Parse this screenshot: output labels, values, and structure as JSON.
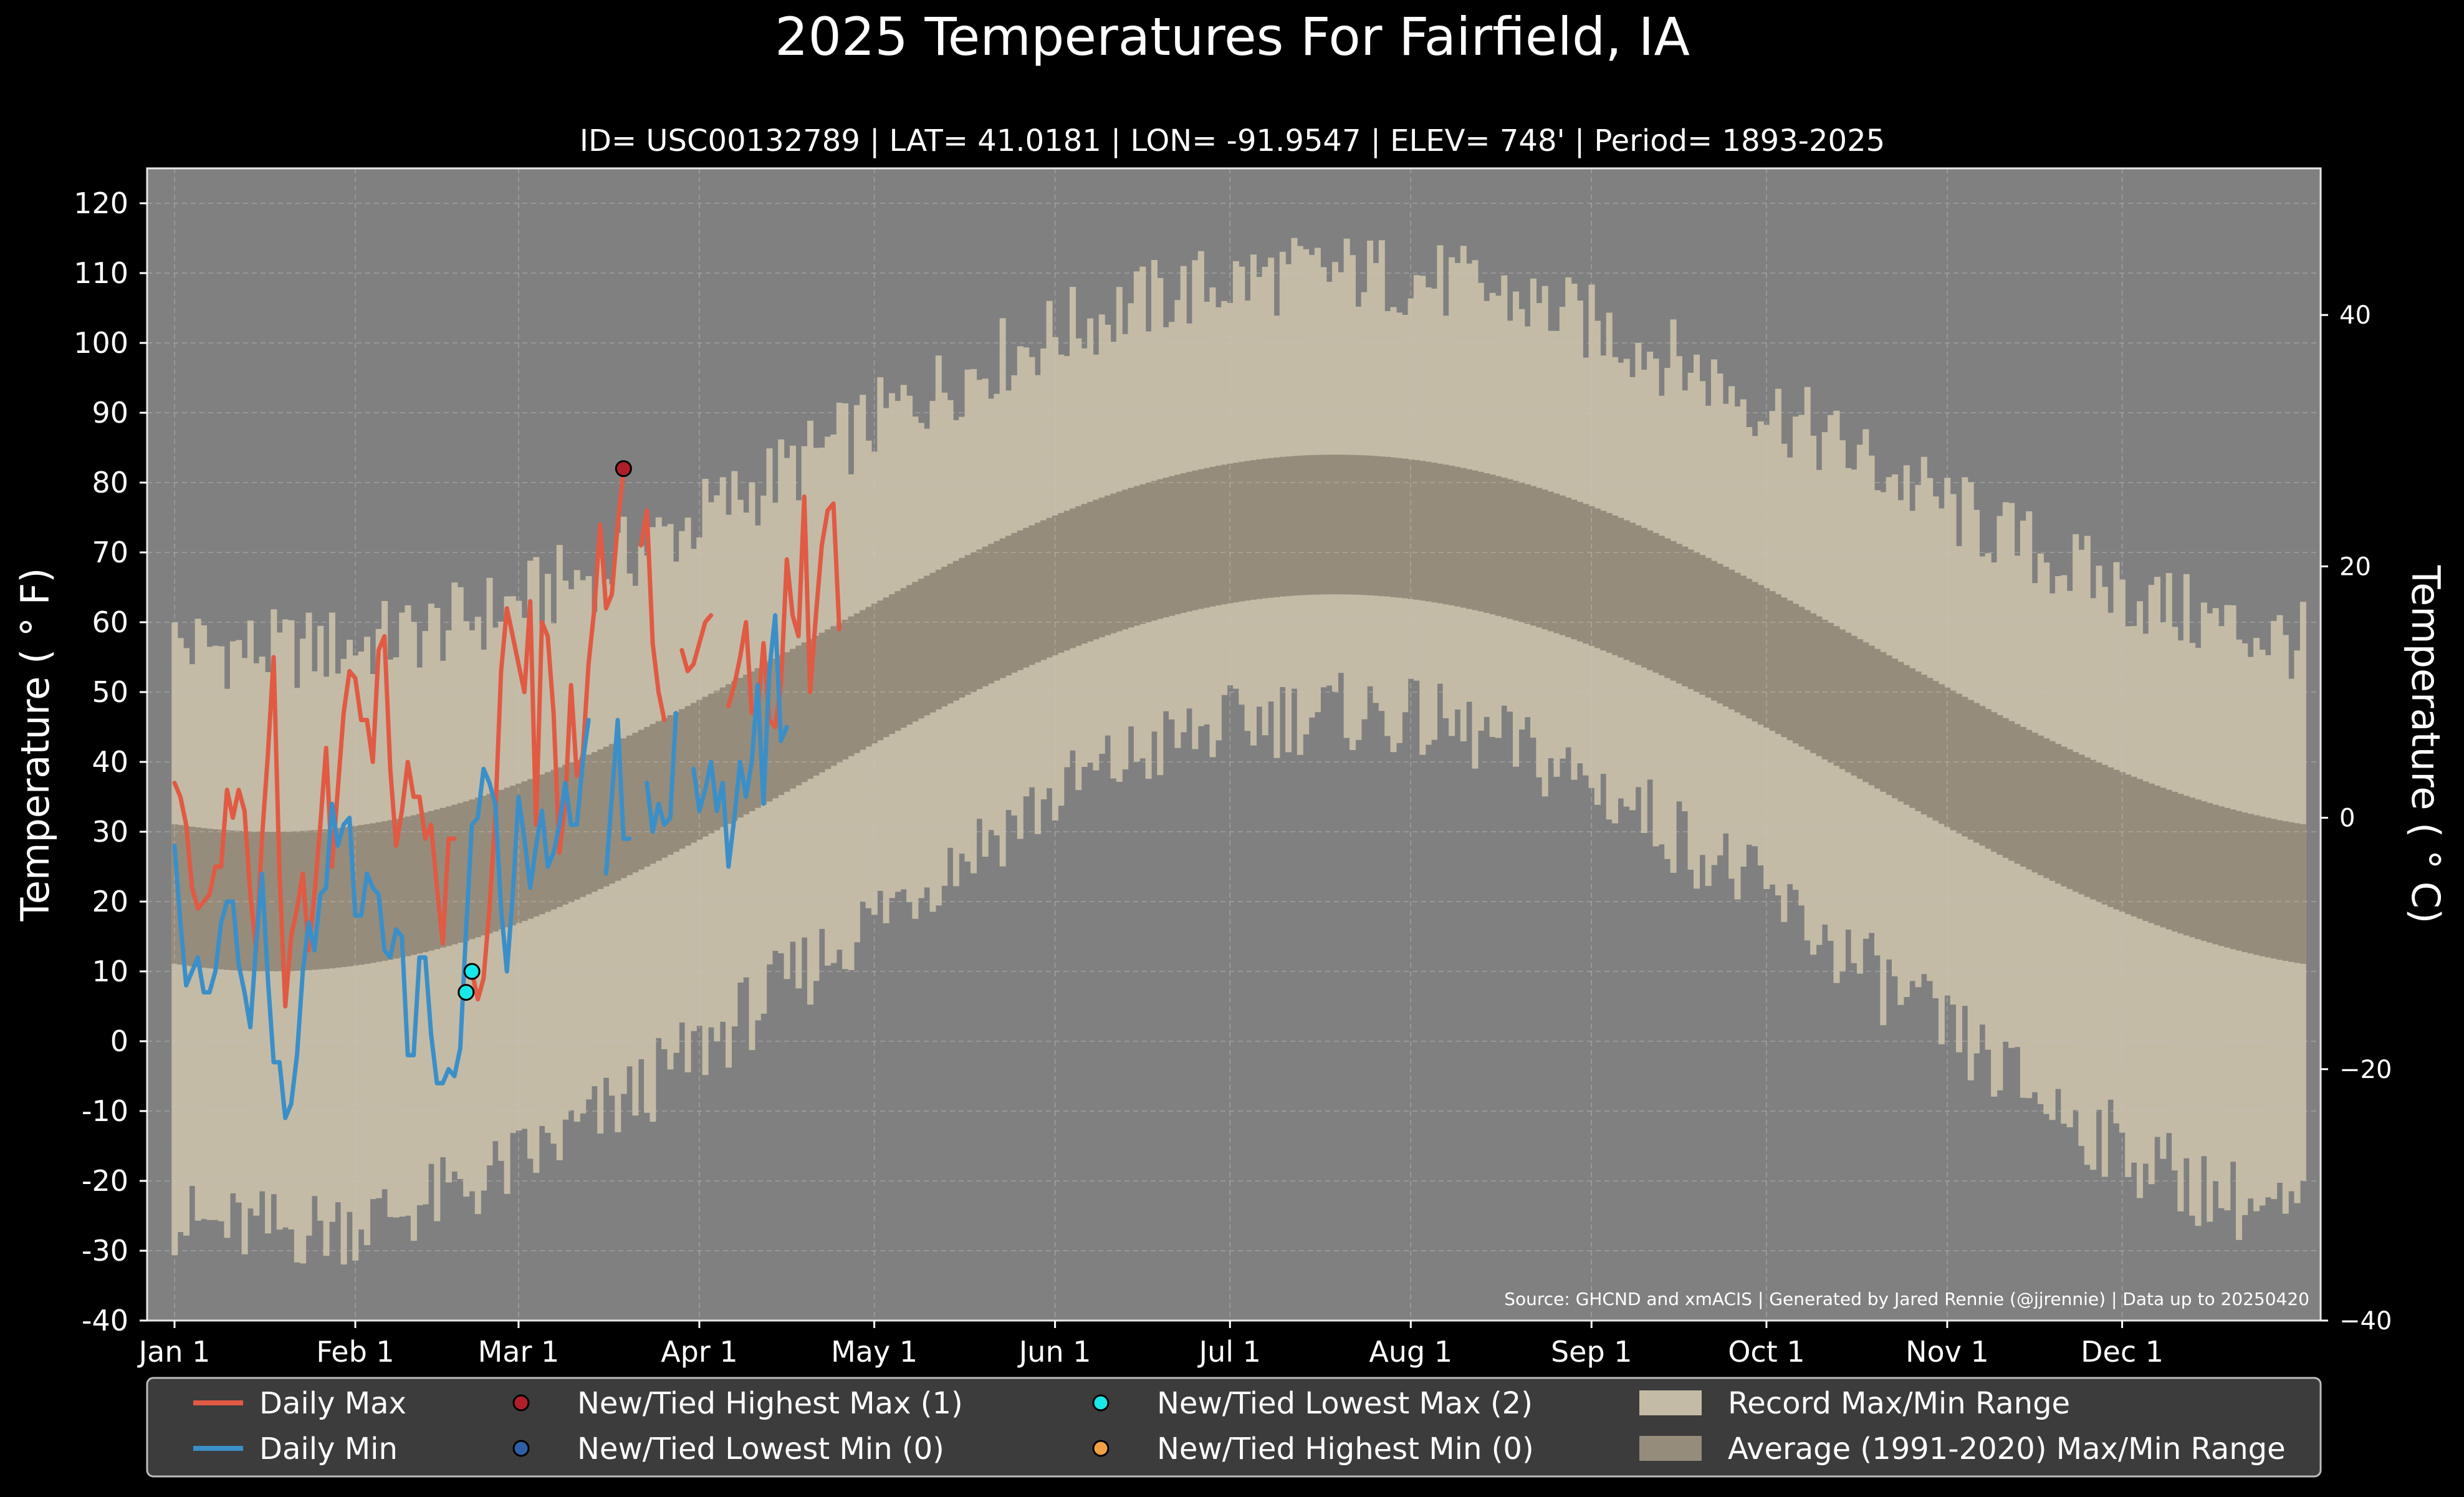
{
  "chart_data": {
    "type": "line",
    "title": "2025 Temperatures For Fairfield, IA",
    "subtitle": "ID= USC00132789 | LAT= 41.0181 | LON= -91.9547 | ELEV= 748' | Period= 1893-2025",
    "ylabel_left": "Temperature ( ° F)",
    "ylabel_right": "Temperature ( ° C)",
    "source": "Source: GHCND and xmACIS | Generated by Jared Rennie (@jjrennie) | Data up to 20250420",
    "ylim": [
      -40,
      125
    ],
    "y_ticks": [
      "-40",
      "-30",
      "-20",
      "-10",
      "0",
      "10",
      "20",
      "30",
      "40",
      "50",
      "60",
      "70",
      "80",
      "90",
      "100",
      "110",
      "120"
    ],
    "y_right_ticks": [
      "−40",
      "−20",
      "0",
      "20",
      "40"
    ],
    "y_right_values_c": [
      -40,
      -20,
      0,
      20,
      40
    ],
    "x_ticks": [
      {
        "label": "Jan 1",
        "day": 1
      },
      {
        "label": "Feb 1",
        "day": 32
      },
      {
        "label": "Mar 1",
        "day": 60
      },
      {
        "label": "Apr 1",
        "day": 91
      },
      {
        "label": "May 1",
        "day": 121
      },
      {
        "label": "Jun 1",
        "day": 152
      },
      {
        "label": "Jul 1",
        "day": 182
      },
      {
        "label": "Aug 1",
        "day": 213
      },
      {
        "label": "Sep 1",
        "day": 244
      },
      {
        "label": "Oct 1",
        "day": 274
      },
      {
        "label": "Nov 1",
        "day": 305
      },
      {
        "label": "Dec 1",
        "day": 335
      }
    ],
    "grid": true,
    "series": [
      {
        "name": "Daily Max",
        "color": "#e05a44",
        "values": [
          37,
          35,
          31,
          22,
          19,
          20,
          21,
          25,
          25,
          36,
          32,
          36,
          33,
          21,
          13,
          29,
          41,
          55,
          24,
          5,
          15,
          19,
          24,
          13,
          21,
          31,
          42,
          25,
          36,
          47,
          53,
          52,
          46,
          46,
          40,
          56,
          58,
          39,
          28,
          33,
          40,
          35,
          35,
          29,
          31,
          22,
          14,
          29,
          29,
          null,
          null,
          10,
          6,
          9,
          19,
          32,
          53,
          62,
          58,
          54,
          50,
          63,
          31,
          60,
          58,
          47,
          27,
          34,
          51,
          38,
          41,
          54,
          62,
          74,
          62,
          64,
          74,
          82,
          null,
          null,
          71,
          76,
          57,
          50,
          46,
          null,
          null,
          56,
          53,
          54,
          57,
          60,
          61,
          null,
          null,
          48,
          51,
          55,
          60,
          47,
          47,
          57,
          46,
          45,
          51,
          69,
          61,
          58,
          78,
          50,
          61,
          71,
          76,
          77,
          59
        ]
      },
      {
        "name": "Daily Min",
        "color": "#3b8fc8",
        "values": [
          28,
          17,
          8,
          10,
          12,
          7,
          7,
          10,
          17,
          20,
          20,
          11,
          7,
          2,
          14,
          24,
          9,
          -3,
          -3,
          -11,
          -9,
          -2,
          10,
          17,
          13,
          21,
          22,
          34,
          28,
          31,
          32,
          18,
          18,
          24,
          22,
          21,
          13,
          12,
          16,
          15,
          -2,
          -2,
          12,
          12,
          1,
          -6,
          -6,
          -4,
          -5,
          -1,
          16,
          31,
          32,
          39,
          37,
          34,
          19,
          10,
          21,
          35,
          29,
          22,
          28,
          33,
          25,
          27,
          31,
          37,
          31,
          31,
          40,
          46,
          null,
          null,
          24,
          35,
          46,
          29,
          29,
          null,
          null,
          37,
          30,
          34,
          31,
          32,
          47,
          null,
          null,
          39,
          33,
          36,
          40,
          33,
          37,
          25,
          32,
          40,
          35,
          40,
          51,
          34,
          53,
          61,
          43,
          45,
          null,
          null,
          null,
          null,
          null,
          null,
          null,
          null,
          null
        ]
      }
    ],
    "record_high_points": [
      {
        "day": 78,
        "value": 82
      }
    ],
    "record_lowest_max_points": [
      {
        "day": 52,
        "value": 10
      },
      {
        "day": 51,
        "value": 7
      }
    ],
    "bands": [
      {
        "name": "Record Max/Min Range",
        "color": "#c4bba6"
      },
      {
        "name": "Average (1991-2020) Max/Min Range",
        "color": "#968c7b"
      }
    ],
    "legend": {
      "placement": "bottom",
      "items": [
        {
          "label": "Daily Max",
          "kind": "line",
          "color": "#e05a44"
        },
        {
          "label": "Daily Min",
          "kind": "line",
          "color": "#3b8fc8"
        },
        {
          "label": "New/Tied Highest Max (1)",
          "kind": "dot",
          "color": "#b01e2a"
        },
        {
          "label": "New/Tied Lowest Min (0)",
          "kind": "dot",
          "color": "#2f5fa8"
        },
        {
          "label": "New/Tied Lowest Max (2)",
          "kind": "dot",
          "color": "#18e8e8"
        },
        {
          "label": "New/Tied Highest Min (0)",
          "kind": "dot",
          "color": "#f0a040"
        },
        {
          "label": "Record Max/Min Range",
          "kind": "patch",
          "color": "#c4bba6"
        },
        {
          "label": "Average (1991-2020) Max/Min Range",
          "kind": "patch",
          "color": "#968c7b"
        }
      ]
    }
  }
}
